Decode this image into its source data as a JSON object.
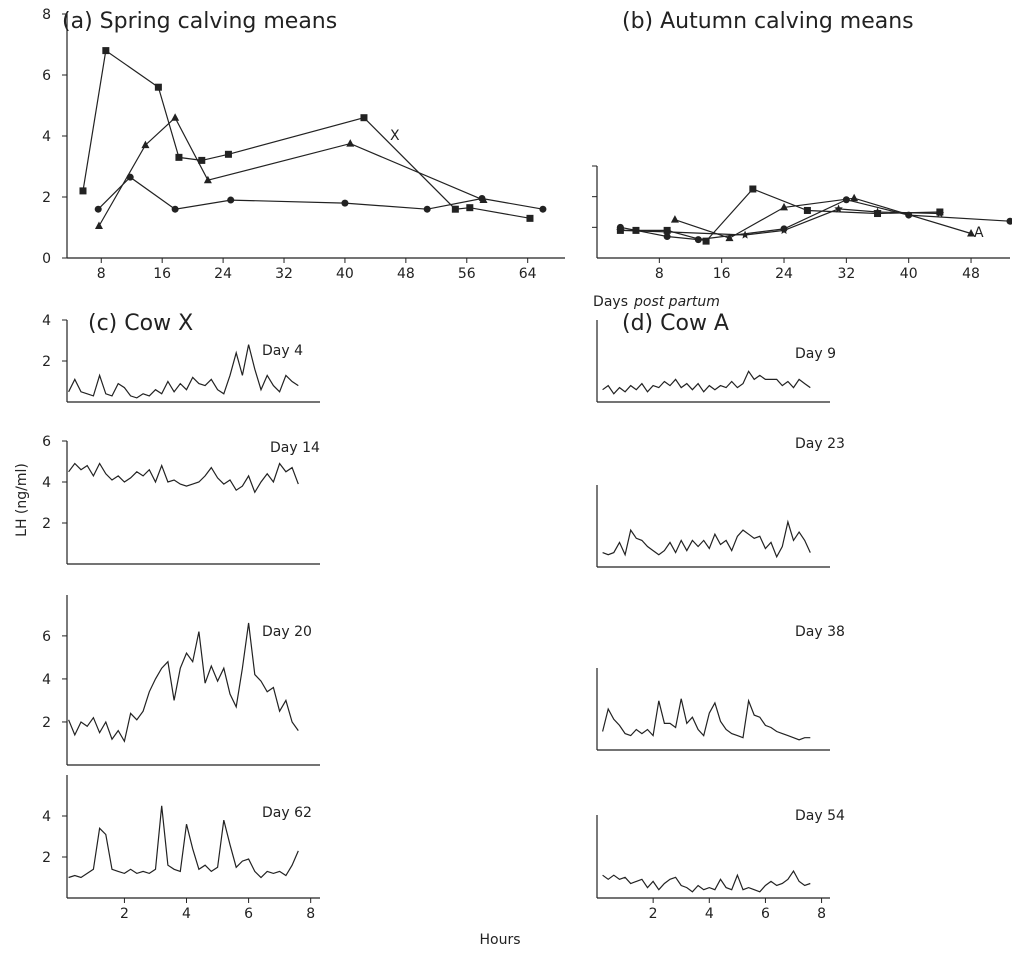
{
  "figure": {
    "y_label": "LH (ng/ml)",
    "x_label_days": "Days",
    "x_label_days_italic": "post partum",
    "x_label_hours": "Hours"
  },
  "chart_data": [
    {
      "type": "line",
      "title": "(a) Spring calving means",
      "color": "#222",
      "xlim": [
        3.5,
        68.9
      ],
      "ylim": [
        0,
        8
      ],
      "xticks": [
        8,
        16,
        24,
        32,
        40,
        48,
        56,
        64
      ],
      "yticks": [
        0,
        2,
        4,
        6,
        8
      ],
      "annotation": "X",
      "series": [
        {
          "marker": "square",
          "x": [
            5.6,
            8.6,
            15.5,
            18.2,
            21.2,
            24.7,
            42.5,
            54.5,
            56.4,
            64.3
          ],
          "values": [
            2.2,
            6.8,
            5.6,
            3.3,
            3.2,
            3.4,
            4.6,
            1.6,
            1.65,
            1.3
          ]
        },
        {
          "marker": "triangle",
          "x": [
            7.7,
            13.8,
            17.7,
            22,
            40.7,
            58.2
          ],
          "values": [
            1.05,
            3.7,
            4.6,
            2.55,
            3.75,
            1.9
          ]
        },
        {
          "marker": "circle",
          "x": [
            7.6,
            11.8,
            17.7,
            25,
            40,
            50.8,
            58,
            66
          ],
          "values": [
            1.6,
            2.65,
            1.6,
            1.9,
            1.8,
            1.6,
            1.95,
            1.6
          ]
        }
      ]
    },
    {
      "type": "line",
      "title": "(b) Autumn calving means",
      "color": "#222",
      "xlim": [
        0,
        53
      ],
      "ylim": [
        0,
        3
      ],
      "xticks": [
        8,
        16,
        24,
        32,
        40,
        48
      ],
      "ytick_marks": [
        1,
        2,
        3
      ],
      "annotation": "A",
      "series": [
        {
          "marker": "circle",
          "x": [
            3,
            9,
            13,
            24,
            32,
            40,
            53
          ],
          "values": [
            1.0,
            0.7,
            0.6,
            0.95,
            1.9,
            1.4,
            1.2
          ]
        },
        {
          "marker": "square",
          "x": [
            3,
            5,
            9,
            14,
            20,
            27,
            36,
            44
          ],
          "values": [
            0.9,
            0.9,
            0.9,
            0.55,
            2.25,
            1.55,
            1.45,
            1.5
          ]
        },
        {
          "marker": "triangle",
          "x": [
            10,
            17,
            24,
            33,
            48
          ],
          "values": [
            1.25,
            0.65,
            1.65,
            1.95,
            0.8
          ]
        },
        {
          "marker": "star",
          "x": [
            3,
            9,
            19,
            24,
            31,
            36,
            44
          ],
          "values": [
            0.9,
            0.85,
            0.75,
            0.9,
            1.6,
            1.5,
            1.45
          ]
        }
      ]
    },
    {
      "type": "line",
      "title": "(c) Cow X",
      "day": "Day 4",
      "color": "#222",
      "xlim": [
        0.15,
        8.3
      ],
      "ylim": [
        0,
        4
      ],
      "yticks": [
        2,
        4
      ],
      "x": [
        0.2,
        0.4,
        0.6,
        0.8,
        1.0,
        1.2,
        1.4,
        1.6,
        1.8,
        2.0,
        2.2,
        2.4,
        2.6,
        2.8,
        3.0,
        3.2,
        3.4,
        3.6,
        3.8,
        4.0,
        4.2,
        4.4,
        4.6,
        4.8,
        5.0,
        5.2,
        5.4,
        5.6,
        5.8,
        6.0,
        6.2,
        6.4,
        6.6,
        6.8,
        7.0,
        7.2,
        7.4,
        7.6
      ],
      "series": [
        {
          "values": [
            0.5,
            1.1,
            0.5,
            0.4,
            0.3,
            1.3,
            0.4,
            0.3,
            0.9,
            0.7,
            0.3,
            0.2,
            0.4,
            0.3,
            0.6,
            0.4,
            1.0,
            0.5,
            0.9,
            0.6,
            1.2,
            0.9,
            0.8,
            1.1,
            0.6,
            0.4,
            1.3,
            2.4,
            1.3,
            2.8,
            1.6,
            0.6,
            1.3,
            0.8,
            0.5,
            1.3,
            1.0,
            0.8
          ]
        }
      ]
    },
    {
      "type": "line",
      "day": "Day 14",
      "color": "#222",
      "xlim": [
        0.15,
        8.3
      ],
      "ylim": [
        0,
        6
      ],
      "yticks": [
        2,
        4,
        6
      ],
      "x": [
        0.2,
        0.4,
        0.6,
        0.8,
        1.0,
        1.2,
        1.4,
        1.6,
        1.8,
        2.0,
        2.2,
        2.4,
        2.6,
        2.8,
        3.0,
        3.2,
        3.4,
        3.6,
        3.8,
        4.0,
        4.2,
        4.4,
        4.6,
        4.8,
        5.0,
        5.2,
        5.4,
        5.6,
        5.8,
        6.0,
        6.2,
        6.4,
        6.6,
        6.8,
        7.0,
        7.2,
        7.4,
        7.6
      ],
      "series": [
        {
          "values": [
            4.5,
            4.9,
            4.6,
            4.8,
            4.3,
            4.9,
            4.4,
            4.1,
            4.3,
            4.0,
            4.2,
            4.5,
            4.3,
            4.6,
            4.0,
            4.8,
            4.0,
            4.1,
            3.9,
            3.8,
            3.9,
            4.0,
            4.3,
            4.7,
            4.2,
            3.9,
            4.1,
            3.6,
            3.8,
            4.3,
            3.5,
            4.0,
            4.4,
            4.0,
            4.9,
            4.5,
            4.7,
            3.9
          ]
        }
      ]
    },
    {
      "type": "line",
      "day": "Day 20",
      "color": "#222",
      "xlim": [
        0.15,
        8.3
      ],
      "ylim": [
        0,
        7.9
      ],
      "yticks": [
        2,
        4,
        6
      ],
      "x": [
        0.2,
        0.4,
        0.6,
        0.8,
        1.0,
        1.2,
        1.4,
        1.6,
        1.8,
        2.0,
        2.2,
        2.4,
        2.6,
        2.8,
        3.0,
        3.2,
        3.4,
        3.6,
        3.8,
        4.0,
        4.2,
        4.4,
        4.6,
        4.8,
        5.0,
        5.2,
        5.4,
        5.6,
        5.8,
        6.0,
        6.2,
        6.4,
        6.6,
        6.8,
        7.0,
        7.2,
        7.4,
        7.6
      ],
      "series": [
        {
          "values": [
            2.1,
            1.4,
            2.0,
            1.8,
            2.2,
            1.5,
            2.0,
            1.2,
            1.6,
            1.1,
            2.4,
            2.1,
            2.5,
            3.4,
            4.0,
            4.5,
            4.8,
            3.0,
            4.5,
            5.2,
            4.8,
            6.2,
            3.8,
            4.6,
            3.9,
            4.5,
            3.3,
            2.7,
            4.5,
            6.6,
            4.2,
            3.9,
            3.4,
            3.6,
            2.5,
            3.0,
            2.0,
            1.6
          ]
        }
      ]
    },
    {
      "type": "line",
      "day": "Day 62",
      "color": "#222",
      "xlim": [
        0.15,
        8.3
      ],
      "ylim": [
        0,
        6
      ],
      "yticks": [
        2,
        4
      ],
      "xticks": [
        2,
        4,
        6,
        8
      ],
      "x": [
        0.2,
        0.4,
        0.6,
        0.8,
        1.0,
        1.2,
        1.4,
        1.6,
        1.8,
        2.0,
        2.2,
        2.4,
        2.6,
        2.8,
        3.0,
        3.2,
        3.4,
        3.6,
        3.8,
        4.0,
        4.2,
        4.4,
        4.6,
        4.8,
        5.0,
        5.2,
        5.4,
        5.6,
        5.8,
        6.0,
        6.2,
        6.4,
        6.6,
        6.8,
        7.0,
        7.2,
        7.4,
        7.6
      ],
      "series": [
        {
          "values": [
            1.0,
            1.1,
            1.0,
            1.2,
            1.4,
            3.4,
            3.1,
            1.4,
            1.3,
            1.2,
            1.4,
            1.2,
            1.3,
            1.2,
            1.4,
            4.5,
            1.6,
            1.4,
            1.3,
            3.6,
            2.4,
            1.4,
            1.6,
            1.3,
            1.5,
            3.8,
            2.6,
            1.5,
            1.8,
            1.9,
            1.3,
            1.0,
            1.3,
            1.2,
            1.3,
            1.1,
            1.6,
            2.3
          ]
        }
      ]
    },
    {
      "type": "line",
      "title": "(d) Cow A",
      "day": "Day 9",
      "color": "#222",
      "xlim": [
        0,
        8.3
      ],
      "ylim": [
        0,
        4
      ],
      "x": [
        0.2,
        0.4,
        0.6,
        0.8,
        1.0,
        1.2,
        1.4,
        1.6,
        1.8,
        2.0,
        2.2,
        2.4,
        2.6,
        2.8,
        3.0,
        3.2,
        3.4,
        3.6,
        3.8,
        4.0,
        4.2,
        4.4,
        4.6,
        4.8,
        5.0,
        5.2,
        5.4,
        5.6,
        5.8,
        6.0,
        6.2,
        6.4,
        6.6,
        6.8,
        7.0,
        7.2,
        7.4,
        7.6
      ],
      "series": [
        {
          "values": [
            0.6,
            0.8,
            0.4,
            0.7,
            0.5,
            0.8,
            0.6,
            0.9,
            0.5,
            0.8,
            0.7,
            1.0,
            0.8,
            1.1,
            0.7,
            0.9,
            0.6,
            0.9,
            0.5,
            0.8,
            0.6,
            0.8,
            0.7,
            1.0,
            0.7,
            0.9,
            1.5,
            1.1,
            1.3,
            1.1,
            1.1,
            1.1,
            0.8,
            1.0,
            0.7,
            1.1,
            0.9,
            0.7
          ]
        }
      ]
    },
    {
      "type": "line",
      "day": "Day 23",
      "color": "#222",
      "xlim": [
        0,
        8.3
      ],
      "ylim": [
        0,
        4
      ],
      "x": [
        0.2,
        0.4,
        0.6,
        0.8,
        1.0,
        1.2,
        1.4,
        1.6,
        1.8,
        2.0,
        2.2,
        2.4,
        2.6,
        2.8,
        3.0,
        3.2,
        3.4,
        3.6,
        3.8,
        4.0,
        4.2,
        4.4,
        4.6,
        4.8,
        5.0,
        5.2,
        5.4,
        5.6,
        5.8,
        6.0,
        6.2,
        6.4,
        6.6,
        6.8,
        7.0,
        7.2,
        7.4,
        7.6
      ],
      "series": [
        {
          "values": [
            0.7,
            0.6,
            0.7,
            1.2,
            0.6,
            1.8,
            1.4,
            1.3,
            1.0,
            0.8,
            0.6,
            0.8,
            1.2,
            0.7,
            1.3,
            0.8,
            1.3,
            1.0,
            1.3,
            0.9,
            1.6,
            1.1,
            1.3,
            0.8,
            1.5,
            1.8,
            1.6,
            1.4,
            1.5,
            0.9,
            1.2,
            0.5,
            1.0,
            2.2,
            1.3,
            1.7,
            1.3,
            0.7
          ]
        }
      ]
    },
    {
      "type": "line",
      "day": "Day 38",
      "color": "#222",
      "xlim": [
        0,
        8.3
      ],
      "ylim": [
        0,
        4
      ],
      "x": [
        0.2,
        0.4,
        0.6,
        0.8,
        1.0,
        1.2,
        1.4,
        1.6,
        1.8,
        2.0,
        2.2,
        2.4,
        2.6,
        2.8,
        3.0,
        3.2,
        3.4,
        3.6,
        3.8,
        4.0,
        4.2,
        4.4,
        4.6,
        4.8,
        5.0,
        5.2,
        5.4,
        5.6,
        5.8,
        6.0,
        6.2,
        6.4,
        6.6,
        6.8,
        7.0,
        7.2,
        7.4,
        7.6
      ],
      "series": [
        {
          "values": [
            0.9,
            2.0,
            1.5,
            1.2,
            0.8,
            0.7,
            1.0,
            0.8,
            1.0,
            0.7,
            2.4,
            1.3,
            1.3,
            1.1,
            2.5,
            1.3,
            1.6,
            1.0,
            0.7,
            1.8,
            2.3,
            1.4,
            1.0,
            0.8,
            0.7,
            0.6,
            2.4,
            1.7,
            1.6,
            1.2,
            1.1,
            0.9,
            0.8,
            0.7,
            0.6,
            0.5,
            0.6,
            0.6
          ]
        }
      ]
    },
    {
      "type": "line",
      "day": "Day 54",
      "color": "#222",
      "xlim": [
        0,
        8.3
      ],
      "ylim": [
        0,
        4
      ],
      "xticks": [
        2,
        4,
        6,
        8
      ],
      "x": [
        0.2,
        0.4,
        0.6,
        0.8,
        1.0,
        1.2,
        1.4,
        1.6,
        1.8,
        2.0,
        2.2,
        2.4,
        2.6,
        2.8,
        3.0,
        3.2,
        3.4,
        3.6,
        3.8,
        4.0,
        4.2,
        4.4,
        4.6,
        4.8,
        5.0,
        5.2,
        5.4,
        5.6,
        5.8,
        6.0,
        6.2,
        6.4,
        6.6,
        6.8,
        7.0,
        7.2,
        7.4,
        7.6
      ],
      "series": [
        {
          "values": [
            1.1,
            0.9,
            1.1,
            0.9,
            1.0,
            0.7,
            0.8,
            0.9,
            0.5,
            0.8,
            0.4,
            0.7,
            0.9,
            1.0,
            0.6,
            0.5,
            0.3,
            0.6,
            0.4,
            0.5,
            0.4,
            0.9,
            0.5,
            0.4,
            1.1,
            0.4,
            0.5,
            0.4,
            0.3,
            0.6,
            0.8,
            0.6,
            0.7,
            0.9,
            1.3,
            0.8,
            0.6,
            0.7
          ]
        }
      ]
    }
  ]
}
